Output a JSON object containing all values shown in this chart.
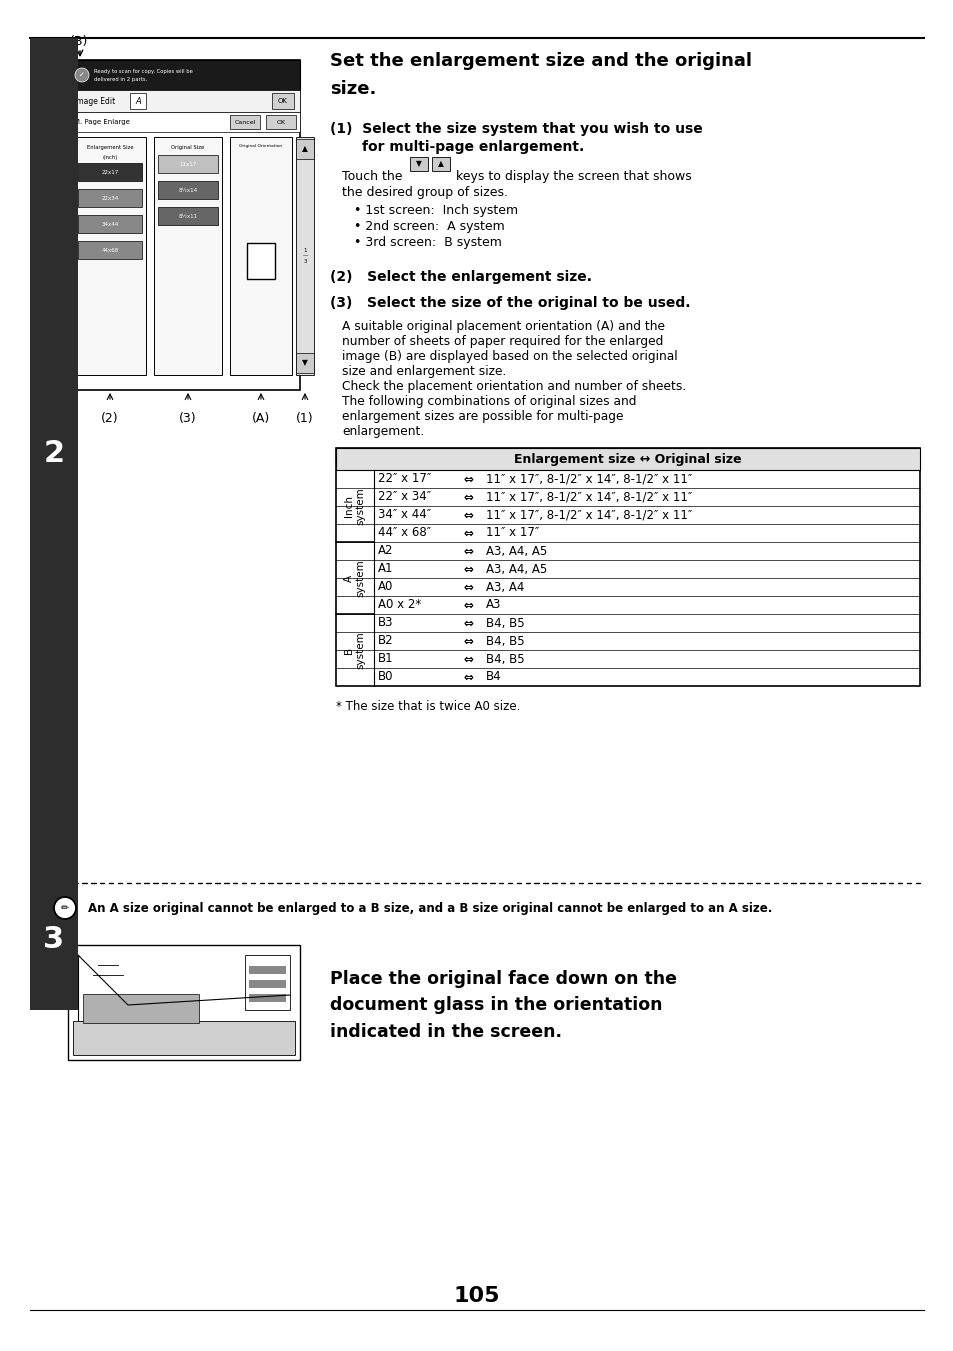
{
  "page_bg": "#ffffff",
  "page_width": 9.54,
  "page_height": 13.51,
  "title_line1": "Set the enlargement size and the original",
  "title_line2": "size.",
  "h1": "(1)  Select the size system that you wish to use",
  "h1b": "      for multi-page enlargement.",
  "h2": "(2)   Select the enlargement size.",
  "h3": "(3)   Select the size of the original to be used.",
  "body1_pre": "Touch the",
  "body1_post": "keys to display the screen that shows",
  "body1_line2": "the desired group of sizes.",
  "bullets": [
    "• 1st screen:  Inch system",
    "• 2nd screen:  A system",
    "• 3rd screen:  B system"
  ],
  "body3": [
    "A suitable original placement orientation (A) and the",
    "number of sheets of paper required for the enlarged",
    "image (B) are displayed based on the selected original",
    "size and enlargement size.",
    "Check the placement orientation and number of sheets.",
    "The following combinations of original sizes and",
    "enlargement sizes are possible for multi-page",
    "enlargement."
  ],
  "table_header": "Enlargement size ↔ Original size",
  "table_groups": [
    {
      "label": "Inch\nsystem",
      "rows": [
        [
          "22″ x 17″",
          "⇔",
          "11″ x 17″, 8-1/2″ x 14″, 8-1/2″ x 11″"
        ],
        [
          "22″ x 34″",
          "⇔",
          "11″ x 17″, 8-1/2″ x 14″, 8-1/2″ x 11″"
        ],
        [
          "34″ x 44″",
          "⇔",
          "11″ x 17″, 8-1/2″ x 14″, 8-1/2″ x 11″"
        ],
        [
          "44″ x 68″",
          "⇔",
          "11″ x 17″"
        ]
      ]
    },
    {
      "label": "A\nsystem",
      "rows": [
        [
          "A2",
          "⇔",
          "A3, A4, A5"
        ],
        [
          "A1",
          "⇔",
          "A3, A4, A5"
        ],
        [
          "A0",
          "⇔",
          "A3, A4"
        ],
        [
          "A0 x 2*",
          "⇔",
          "A3"
        ]
      ]
    },
    {
      "label": "B\nsystem",
      "rows": [
        [
          "B3",
          "⇔",
          "B4, B5"
        ],
        [
          "B2",
          "⇔",
          "B4, B5"
        ],
        [
          "B1",
          "⇔",
          "B4, B5"
        ],
        [
          "B0",
          "⇔",
          "B4"
        ]
      ]
    }
  ],
  "footnote": "* The size that is twice A0 size.",
  "note_text": "An A size original cannot be enlarged to a B size, and a B size original cannot be enlarged to an A size.",
  "step3_text": "Place the original face down on the\ndocument glass in the orientation\nindicated in the screen.",
  "page_number": "105",
  "sidebar_color": "#2d2d2d",
  "header_bg": "#e0e0e0"
}
